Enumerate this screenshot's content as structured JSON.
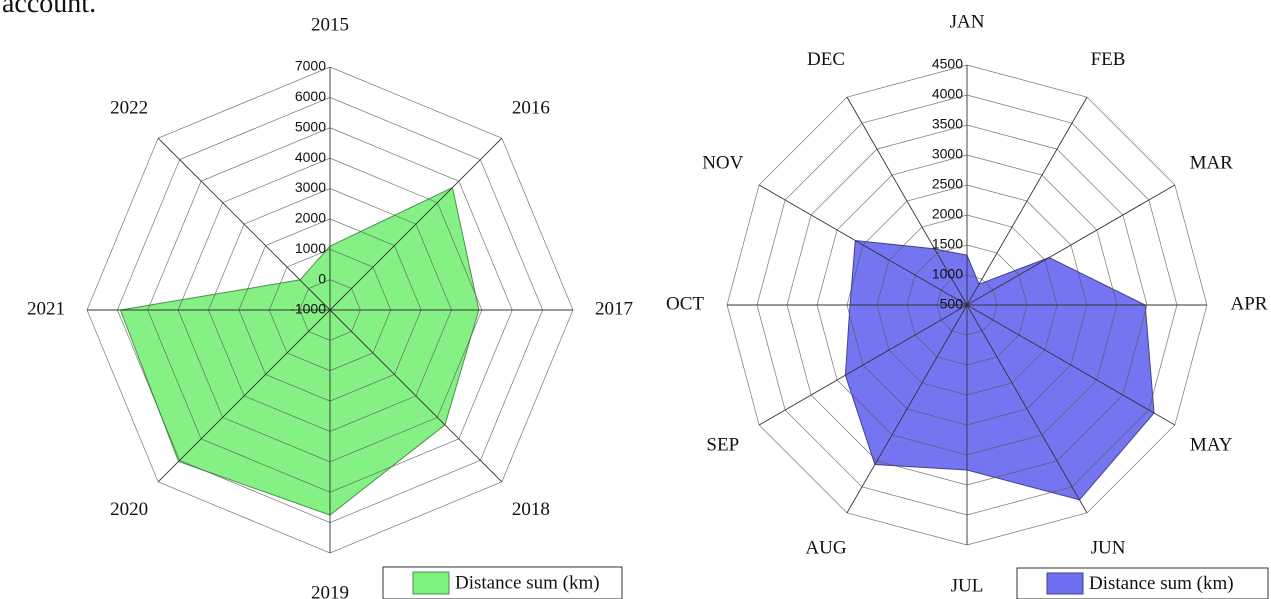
{
  "caption": "account.",
  "chart_data": [
    {
      "type": "radar",
      "categories": [
        "2015",
        "2016",
        "2017",
        "2018",
        "2019",
        "2020",
        "2021",
        "2022"
      ],
      "series": [
        {
          "name": "Distance sum (km)",
          "color": "#7ef07e",
          "values": [
            1100,
            4700,
            3900,
            4350,
            5750,
            6050,
            5900,
            400
          ]
        }
      ],
      "ylim": [
        -1000,
        7000
      ],
      "yticks": [
        -1000,
        0,
        1000,
        2000,
        3000,
        4000,
        5000,
        6000,
        7000
      ],
      "grid": true,
      "legend": "bottom-right"
    },
    {
      "type": "radar",
      "categories": [
        "JAN",
        "FEB",
        "MAR",
        "APR",
        "MAY",
        "JUN",
        "JUL",
        "AUG",
        "SEP",
        "OCT",
        "NOV",
        "DEC"
      ],
      "series": [
        {
          "name": "Distance sum (km)",
          "color": "#6e6ef0",
          "values": [
            1330,
            900,
            2080,
            3470,
            4100,
            4250,
            3250,
            3570,
            2840,
            2450,
            2650,
            1580
          ]
        }
      ],
      "ylim": [
        500,
        4500
      ],
      "yticks": [
        500,
        1000,
        1500,
        2000,
        2500,
        3000,
        3500,
        4000,
        4500
      ],
      "grid": true,
      "legend": "bottom-right"
    }
  ]
}
